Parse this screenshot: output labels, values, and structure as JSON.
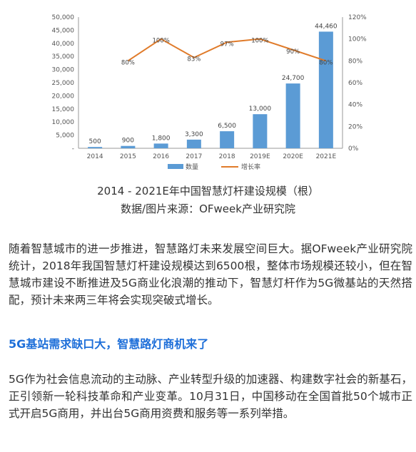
{
  "chart_data": {
    "type": "bar",
    "title": "2014 - 2021E年中国智慧灯杆建设规模（根）",
    "source": "数据/图片来源：OFweek产业研究院",
    "categories": [
      "2014",
      "2015",
      "2016",
      "2017",
      "2018",
      "2019E",
      "2020E",
      "2021E"
    ],
    "series": [
      {
        "name": "数量",
        "type": "bar",
        "axis": "left",
        "color": "#5b9bd5",
        "values": [
          500,
          900,
          1800,
          3300,
          6500,
          13000,
          24700,
          44460
        ],
        "labels": [
          "500",
          "900",
          "1,800",
          "3,300",
          "6,500",
          "13,000",
          "24,700",
          "44,460"
        ]
      },
      {
        "name": "增长率",
        "type": "line",
        "axis": "right",
        "color": "#e07b2a",
        "values": [
          null,
          80,
          100,
          83,
          97,
          100,
          90,
          80
        ],
        "labels": [
          "",
          "80%",
          "100%",
          "83%",
          "97%",
          "100%",
          "90%",
          "80%"
        ]
      }
    ],
    "y_left": {
      "ylim": [
        0,
        50000
      ],
      "ticks": [
        "-",
        "5,000",
        "10,000",
        "15,000",
        "20,000",
        "25,000",
        "30,000",
        "35,000",
        "40,000",
        "45,000",
        "50,000"
      ]
    },
    "y_right": {
      "ylim": [
        0,
        120
      ],
      "ticks": [
        "0%",
        "20%",
        "40%",
        "60%",
        "80%",
        "100%",
        "120%"
      ]
    },
    "grid": false,
    "legend": "bottom"
  },
  "article": {
    "paragraph1": "随着智慧城市的进一步推进，智慧路灯未来发展空间巨大。据OFweek产业研究院统计，2018年我国智慧灯杆建设规模达到6500根，整体市场规模还较小，但在智慧城市建设不断推进及5G商业化浪潮的推动下，智慧灯杆作为5G微基站的天然搭配，预计未来两三年将会实现突破式增长。",
    "heading": "5G基站需求缺口大，智慧路灯商机来了",
    "paragraph2": "5G作为社会信息流动的主动脉、产业转型升级的加速器、构建数字社会的新基石，正引领新一轮科技革命和产业变革。10月31日，中国移动在全国首批50个城市正式开启5G商用，并出台5G商用资费和服务等一系列举措。"
  }
}
